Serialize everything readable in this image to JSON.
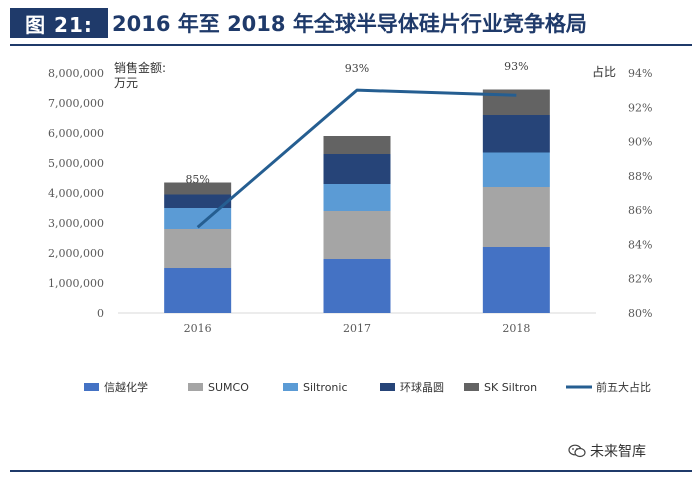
{
  "header": {
    "fig_label": "图 21:",
    "title": "2016 年至 2018 年全球半导体硅片行业竞争格局"
  },
  "watermark": {
    "text": "未来智库",
    "icon": "wechat-icon"
  },
  "colors": {
    "信越化学": "#4472c4",
    "SUMCO": "#a5a5a5",
    "Siltronic": "#5b9bd5",
    "环球晶圆": "#264478",
    "SK Siltron": "#636363",
    "前五大占比": "#255e91",
    "axis_text": "#595959",
    "header": "#1f3a6a"
  },
  "chart_data": {
    "type": "bar",
    "stacked": true,
    "categories": [
      "2016",
      "2017",
      "2018"
    ],
    "series": [
      {
        "name": "信越化学",
        "values": [
          1500000,
          1800000,
          2200000
        ]
      },
      {
        "name": "SUMCO",
        "values": [
          1300000,
          1600000,
          2000000
        ]
      },
      {
        "name": "Siltronic",
        "values": [
          700000,
          900000,
          1150000
        ]
      },
      {
        "name": "环球晶圆",
        "values": [
          450000,
          1000000,
          1250000
        ]
      },
      {
        "name": "SK Siltron",
        "values": [
          400000,
          600000,
          850000
        ]
      }
    ],
    "line_series": {
      "name": "前五大占比",
      "axis": "right",
      "values": [
        85,
        93,
        92.7
      ],
      "labels": [
        "85%",
        "93%",
        "93%"
      ]
    },
    "ylabel_left": "销售金额:\n万元",
    "ylabel_right": "占比",
    "ylim_left": [
      0,
      8000000
    ],
    "yticks_left": [
      "0",
      "1,000,000",
      "2,000,000",
      "3,000,000",
      "4,000,000",
      "5,000,000",
      "6,000,000",
      "7,000,000",
      "8,000,000"
    ],
    "ylim_right": [
      80,
      94
    ],
    "yticks_right": [
      "80%",
      "82%",
      "84%",
      "86%",
      "88%",
      "90%",
      "92%",
      "94%"
    ],
    "grid": false,
    "legend_position": "bottom"
  }
}
